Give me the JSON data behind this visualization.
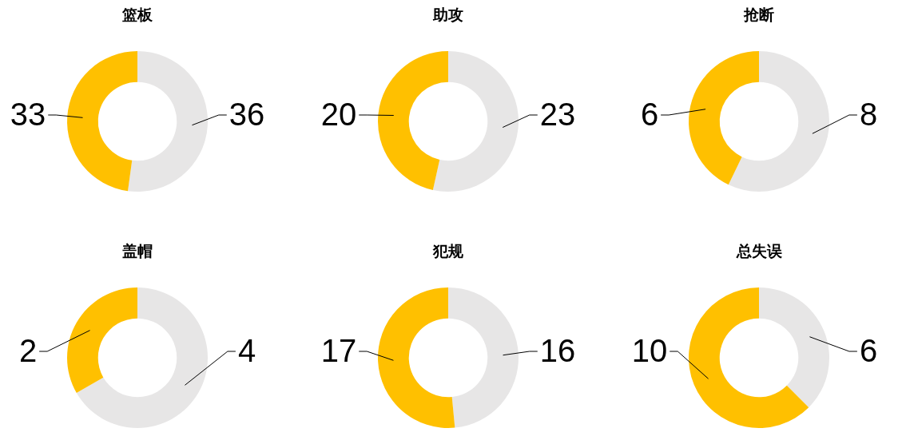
{
  "chart_data": [
    {
      "type": "donut",
      "title": "篮板",
      "categories": [
        null,
        null
      ],
      "values": [
        36,
        33
      ],
      "colors": [
        "#e7e6e6",
        "#ffc000"
      ],
      "data_labels": true
    },
    {
      "type": "donut",
      "title": "助攻",
      "categories": [
        null,
        null
      ],
      "values": [
        23,
        20
      ],
      "colors": [
        "#e7e6e6",
        "#ffc000"
      ],
      "data_labels": true
    },
    {
      "type": "donut",
      "title": "抢断",
      "categories": [
        null,
        null
      ],
      "values": [
        8,
        6
      ],
      "colors": [
        "#e7e6e6",
        "#ffc000"
      ],
      "data_labels": true
    },
    {
      "type": "donut",
      "title": "盖帽",
      "categories": [
        null,
        null
      ],
      "values": [
        4,
        2
      ],
      "colors": [
        "#e7e6e6",
        "#ffc000"
      ],
      "data_labels": true
    },
    {
      "type": "donut",
      "title": "犯规",
      "categories": [
        null,
        null
      ],
      "values": [
        16,
        17
      ],
      "colors": [
        "#e7e6e6",
        "#ffc000"
      ],
      "data_labels": true
    },
    {
      "type": "donut",
      "title": "总失误",
      "categories": [
        null,
        null
      ],
      "values": [
        6,
        10
      ],
      "colors": [
        "#e7e6e6",
        "#ffc000"
      ],
      "data_labels": true
    }
  ]
}
